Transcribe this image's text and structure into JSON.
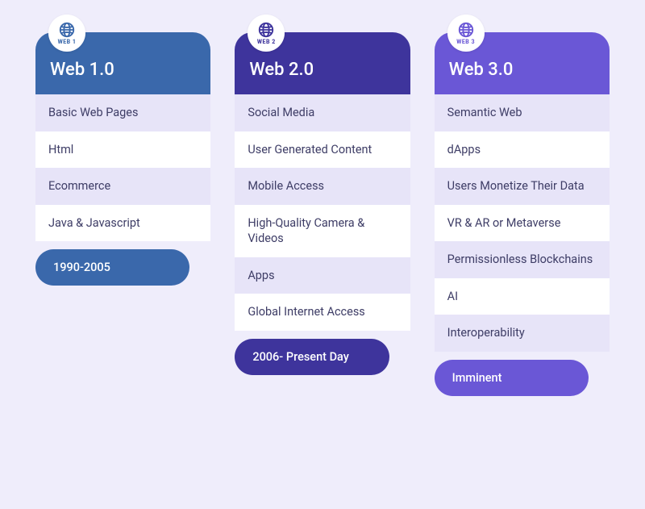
{
  "background_color": "#efedfb",
  "row_colors": {
    "odd": "#e7e4f8",
    "even": "#ffffff"
  },
  "item_text_color": "#3e3d66",
  "columns": [
    {
      "badge_label": "WEB 1",
      "title": "Web 1.0",
      "header_bg": "#3a68ab",
      "badge_accent": "#3a68ab",
      "items": [
        "Basic Web Pages",
        "Html",
        "Ecommerce",
        "Java & Javascript"
      ],
      "pill_label": "1990-2005",
      "pill_bg": "#3a68ab"
    },
    {
      "badge_label": "WEB 2",
      "title": "Web 2.0",
      "header_bg": "#3e349c",
      "badge_accent": "#3e349c",
      "items": [
        "Social Media",
        "User Generated Content",
        "Mobile Access",
        "High-Quality Camera & Videos",
        "Apps",
        "Global Internet Access"
      ],
      "pill_label": "2006- Present Day",
      "pill_bg": "#3e349c"
    },
    {
      "badge_label": "WEB 3",
      "title": "Web 3.0",
      "header_bg": "#6a57d6",
      "badge_accent": "#6a57d6",
      "items": [
        "Semantic Web",
        "dApps",
        "Users Monetize Their Data",
        "VR & AR or Metaverse",
        "Permissionless Blockchains",
        "AI",
        "Interoperability"
      ],
      "pill_label": "Imminent",
      "pill_bg": "#6a57d6"
    }
  ]
}
